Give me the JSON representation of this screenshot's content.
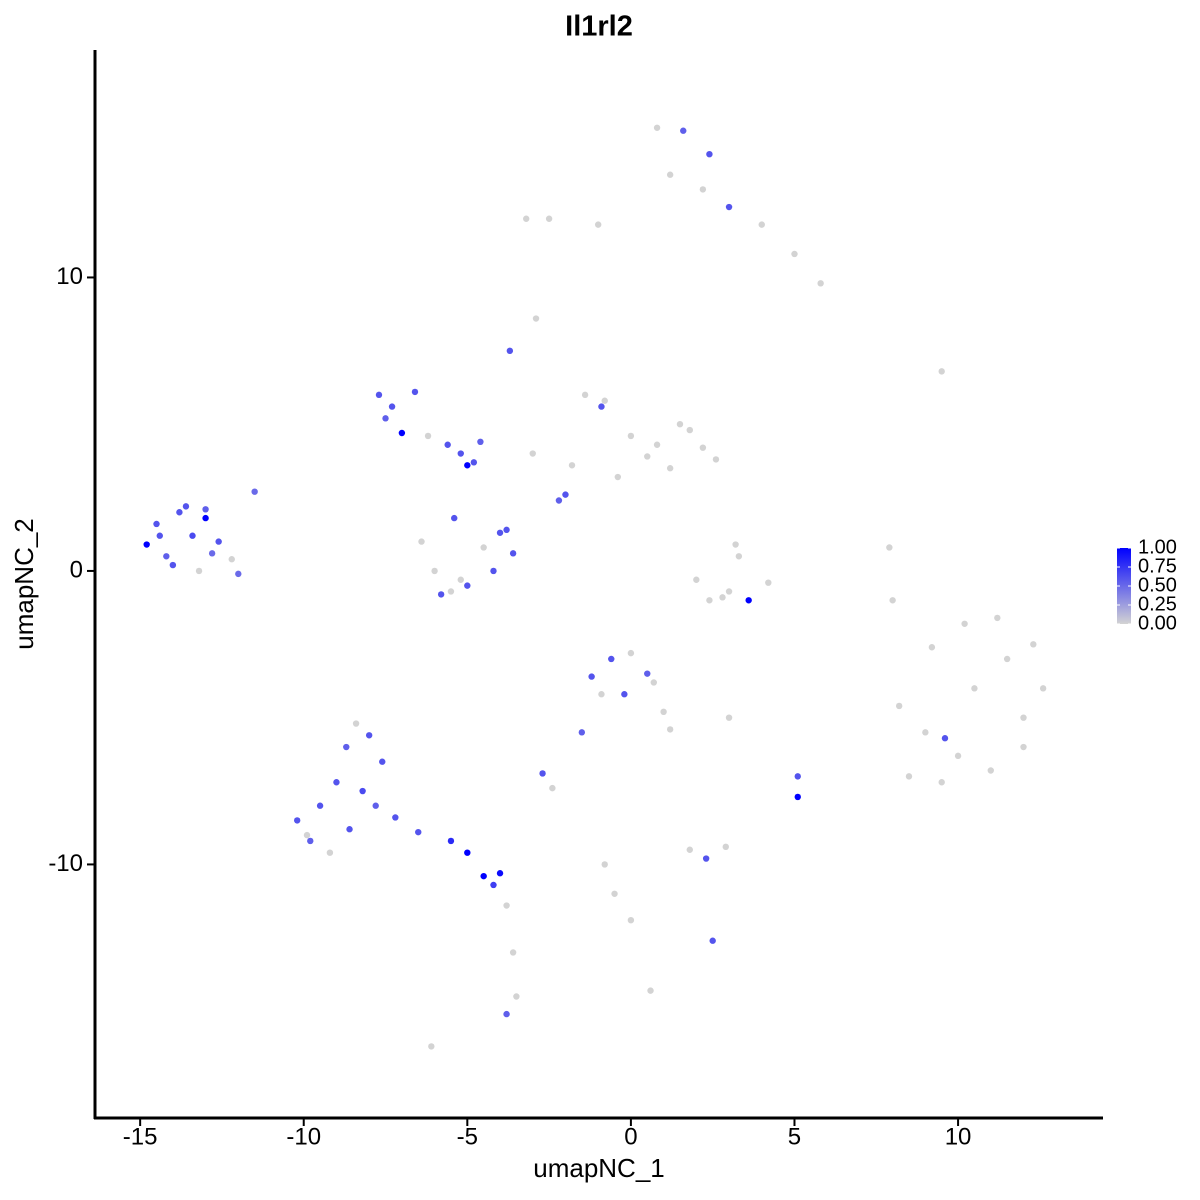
{
  "chart_data": {
    "type": "scatter",
    "title": "Il1rl2",
    "x_label": "umapNC_1",
    "y_label": "umapNC_2",
    "xlim": [
      -16.38,
      14.43
    ],
    "ylim": [
      -18.64,
      17.75
    ],
    "xticks": [
      -15,
      -10,
      -5,
      0,
      5,
      10
    ],
    "yticks": [
      -10,
      0,
      10
    ],
    "color_low": "#d3d3d3",
    "color_high": "#0000ff",
    "clim": [
      0,
      1
    ],
    "colorbar_ticks": [
      {
        "value": 0,
        "label": "0.00"
      },
      {
        "value": 0.25,
        "label": "0.25"
      },
      {
        "value": 0.5,
        "label": "0.50"
      },
      {
        "value": 0.75,
        "label": "0.75"
      },
      {
        "value": 1,
        "label": "1.00"
      }
    ],
    "series": [
      {
        "x": [
          0.8,
          1.6,
          2.4,
          1.2,
          2.2,
          3.0,
          4.0,
          5.0,
          5.8,
          -1.0,
          -2.5,
          -3.2
        ],
        "values": [
          15.1,
          15.0,
          14.2,
          13.5,
          13.0,
          12.4,
          11.8,
          10.8,
          9.8,
          11.8,
          12.0,
          12.0
        ],
        "expression": [
          0,
          0.55,
          0.6,
          0,
          0,
          0.6,
          0,
          0,
          0,
          0,
          0,
          0
        ]
      },
      {
        "x": [
          8.2,
          9.0,
          10.0,
          11.0,
          12.0,
          12.6,
          8.5,
          9.5,
          10.5,
          11.5,
          12.3,
          9.2,
          10.2,
          11.2,
          12.0,
          9.6
        ],
        "values": [
          -4.6,
          -5.5,
          -6.3,
          -6.8,
          -6.0,
          -4.0,
          -7.0,
          -7.2,
          -4.0,
          -3.0,
          -2.5,
          -2.6,
          -1.8,
          -1.6,
          -5.0,
          -5.7
        ],
        "expression": [
          0,
          0,
          0,
          0,
          0,
          0,
          0,
          0,
          0,
          0,
          0,
          0,
          0,
          0,
          0,
          0.6
        ]
      },
      {
        "x": [
          -14.8,
          -14.5,
          -14.2,
          -13.8,
          -13.4,
          -13.0,
          -12.8,
          -14.0,
          -13.6,
          -13.2,
          -12.6,
          -12.2,
          -11.5,
          -14.4,
          -13.0,
          -12.0
        ],
        "values": [
          0.9,
          1.6,
          0.5,
          2.0,
          1.2,
          1.8,
          0.6,
          0.2,
          2.2,
          0.0,
          1.0,
          0.4,
          2.7,
          1.2,
          2.1,
          -0.1
        ],
        "expression": [
          1,
          0.6,
          0.55,
          0.6,
          0.65,
          1,
          0.5,
          0.6,
          0.6,
          0,
          0.6,
          0,
          0.5,
          0.6,
          0.55,
          0.5
        ]
      },
      {
        "x": [
          -10.2,
          -9.8,
          -9.5,
          -9.0,
          -8.7,
          -8.4,
          -8.0,
          -7.6,
          -9.2,
          -8.6,
          -7.8,
          -9.9,
          -8.2,
          -7.2,
          -6.5,
          -5.5,
          -5.0,
          -4.5,
          -4.0,
          -4.2,
          -3.8,
          -3.6,
          -3.5,
          -3.8
        ],
        "values": [
          -8.5,
          -9.2,
          -8.0,
          -7.2,
          -6.0,
          -5.2,
          -5.6,
          -6.5,
          -9.6,
          -8.8,
          -8.0,
          -9.0,
          -7.5,
          -8.4,
          -8.9,
          -9.2,
          -9.6,
          -10.4,
          -10.3,
          -10.7,
          -11.4,
          -13.0,
          -14.5,
          -15.1
        ],
        "expression": [
          0.6,
          0.55,
          0.6,
          0.6,
          0.55,
          0,
          0.6,
          0.6,
          0,
          0.6,
          0.55,
          0,
          0.65,
          0.6,
          0.6,
          0.8,
          1,
          1,
          0.95,
          0.7,
          0,
          0,
          0,
          0.55
        ]
      },
      {
        "x": [
          -6.4,
          -6.0,
          -5.5,
          -5.0,
          -4.5,
          -4.0,
          -3.6,
          -5.8,
          -5.2,
          -4.2,
          -3.8,
          -5.4
        ],
        "values": [
          1.0,
          0.0,
          -0.7,
          -0.5,
          0.8,
          1.3,
          0.6,
          -0.8,
          -0.3,
          0.0,
          1.4,
          1.8
        ],
        "expression": [
          0,
          0,
          0,
          0.6,
          0,
          0.6,
          0.6,
          0.6,
          0,
          0.6,
          0.6,
          0.6
        ]
      },
      {
        "x": [
          -7.7,
          -7.3,
          -7.0,
          -6.6,
          -6.2,
          -7.5,
          -5.6,
          -5.2,
          -5.0,
          -4.6,
          -3.7,
          -4.8
        ],
        "values": [
          6.0,
          5.6,
          4.7,
          6.1,
          4.6,
          5.2,
          4.3,
          4.0,
          3.6,
          4.4,
          7.5,
          3.7
        ],
        "expression": [
          0.6,
          0.6,
          1,
          0.6,
          0,
          0.55,
          0.6,
          0.6,
          1,
          0.55,
          0.6,
          0.6
        ]
      },
      {
        "x": [
          -1.4,
          -0.8,
          0.0,
          0.8,
          1.5,
          2.2,
          2.6,
          -1.8,
          -0.4,
          1.2,
          -2.0,
          -3.0,
          -0.9,
          0.5,
          1.8,
          -2.2
        ],
        "values": [
          6.0,
          5.8,
          4.6,
          4.3,
          5.0,
          4.2,
          3.8,
          3.6,
          3.2,
          3.5,
          2.6,
          4.0,
          5.6,
          3.9,
          4.8,
          2.4
        ],
        "expression": [
          0,
          0,
          0,
          0,
          0,
          0,
          0,
          0,
          0,
          0,
          0.6,
          0,
          0.6,
          0,
          0,
          0.55
        ]
      },
      {
        "x": [
          2.0,
          2.8,
          3.6,
          4.2,
          3.2,
          3.3,
          3.0,
          2.4
        ],
        "values": [
          -0.3,
          -0.9,
          -1.0,
          -0.4,
          0.9,
          0.5,
          -0.7,
          -1.0
        ],
        "expression": [
          0,
          0,
          1,
          0,
          0,
          0,
          0,
          0
        ]
      },
      {
        "x": [
          -1.2,
          -0.6,
          0.0,
          0.5,
          1.0,
          -0.9,
          -0.2,
          0.7,
          -1.5,
          -2.7,
          -2.4,
          1.2
        ],
        "values": [
          -3.6,
          -3.0,
          -2.8,
          -3.5,
          -4.8,
          -4.2,
          -4.2,
          -3.8,
          -5.5,
          -6.9,
          -7.4,
          -5.4
        ],
        "expression": [
          0.6,
          0.6,
          0,
          0.55,
          0,
          0,
          0.6,
          0,
          0.55,
          0.6,
          0,
          0
        ]
      },
      {
        "x": [
          1.8,
          2.3,
          2.9,
          2.5,
          5.1,
          5.1,
          -0.8,
          -0.5,
          0.0,
          -6.1,
          0.6,
          3.0,
          9.5,
          7.9,
          8.0,
          -2.9
        ],
        "values": [
          -9.5,
          -9.8,
          -9.4,
          -12.6,
          -7.0,
          -7.7,
          -10.0,
          -11.0,
          -11.9,
          -16.2,
          -14.3,
          -5.0,
          6.8,
          0.8,
          -1.0,
          8.6
        ],
        "expression": [
          0,
          0.6,
          0,
          0.6,
          0.6,
          1,
          0,
          0,
          0,
          0,
          0,
          0,
          0,
          0,
          0,
          0
        ]
      }
    ]
  }
}
